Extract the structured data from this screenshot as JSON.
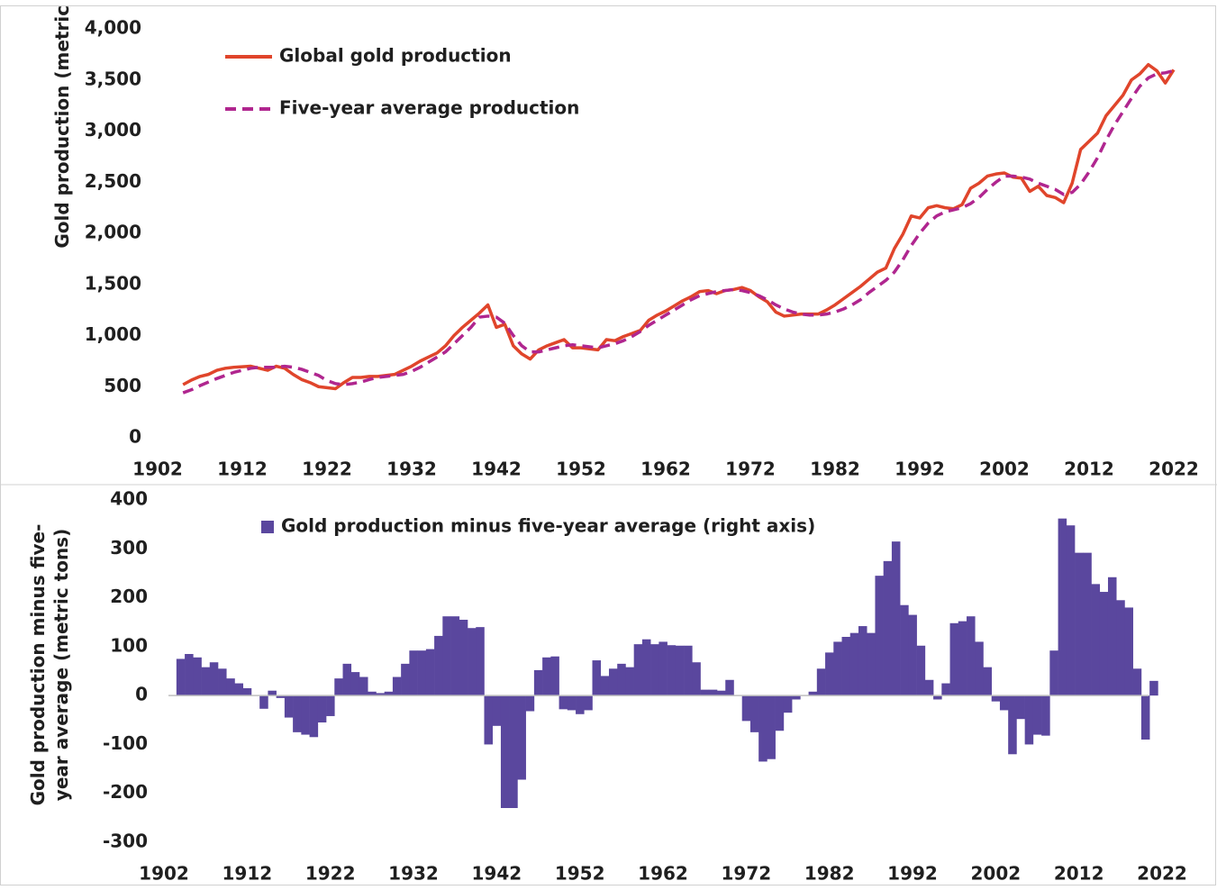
{
  "chart_data": [
    {
      "type": "line",
      "y_label": [
        "Gold production (metric tons)"
      ],
      "x": [
        1905,
        1906,
        1907,
        1908,
        1909,
        1910,
        1911,
        1912,
        1913,
        1914,
        1915,
        1916,
        1917,
        1918,
        1919,
        1920,
        1921,
        1922,
        1923,
        1924,
        1925,
        1926,
        1927,
        1928,
        1929,
        1930,
        1931,
        1932,
        1933,
        1934,
        1935,
        1936,
        1937,
        1938,
        1939,
        1940,
        1941,
        1942,
        1943,
        1944,
        1945,
        1946,
        1947,
        1948,
        1949,
        1950,
        1951,
        1952,
        1953,
        1954,
        1955,
        1956,
        1957,
        1958,
        1959,
        1960,
        1961,
        1962,
        1963,
        1964,
        1965,
        1966,
        1967,
        1968,
        1969,
        1970,
        1971,
        1972,
        1973,
        1974,
        1975,
        1976,
        1977,
        1978,
        1979,
        1980,
        1981,
        1982,
        1983,
        1984,
        1985,
        1986,
        1987,
        1988,
        1989,
        1990,
        1991,
        1992,
        1993,
        1994,
        1995,
        1996,
        1997,
        1998,
        1999,
        2000,
        2001,
        2002,
        2003,
        2004,
        2005,
        2006,
        2007,
        2008,
        2009,
        2010,
        2011,
        2012,
        2013,
        2014,
        2015,
        2016,
        2017,
        2018,
        2019,
        2020,
        2021,
        2022
      ],
      "series": [
        {
          "name": "Global gold production",
          "color": "#e0452b",
          "dash": false,
          "values": [
            520,
            565,
            600,
            620,
            660,
            680,
            690,
            695,
            700,
            680,
            660,
            700,
            680,
            620,
            570,
            540,
            500,
            490,
            480,
            540,
            590,
            590,
            600,
            600,
            610,
            620,
            660,
            700,
            750,
            790,
            830,
            900,
            1000,
            1080,
            1150,
            1220,
            1300,
            1080,
            1110,
            900,
            820,
            770,
            860,
            900,
            930,
            960,
            880,
            880,
            870,
            860,
            960,
            950,
            990,
            1020,
            1050,
            1150,
            1200,
            1240,
            1290,
            1340,
            1380,
            1430,
            1440,
            1410,
            1440,
            1450,
            1470,
            1440,
            1380,
            1330,
            1230,
            1190,
            1200,
            1210,
            1210,
            1210,
            1250,
            1300,
            1360,
            1420,
            1480,
            1550,
            1620,
            1660,
            1850,
            1990,
            2170,
            2150,
            2250,
            2270,
            2250,
            2240,
            2280,
            2440,
            2490,
            2560,
            2580,
            2590,
            2550,
            2540,
            2410,
            2460,
            2370,
            2350,
            2300,
            2490,
            2820,
            2900,
            2980,
            3150,
            3250,
            3350,
            3500,
            3560,
            3650,
            3590,
            3470,
            3600
          ]
        },
        {
          "name": "Five-year average production",
          "color": "#b0268f",
          "dash": true,
          "values": [
            440,
            470,
            510,
            545,
            580,
            610,
            640,
            660,
            680,
            690,
            690,
            690,
            700,
            690,
            670,
            640,
            610,
            560,
            530,
            520,
            530,
            545,
            570,
            590,
            600,
            610,
            620,
            650,
            690,
            740,
            790,
            840,
            920,
            1000,
            1080,
            1180,
            1190,
            1180,
            1120,
            1000,
            900,
            840,
            840,
            860,
            880,
            900,
            910,
            900,
            890,
            880,
            900,
            920,
            950,
            990,
            1040,
            1100,
            1150,
            1200,
            1250,
            1300,
            1350,
            1390,
            1410,
            1430,
            1440,
            1450,
            1440,
            1420,
            1390,
            1350,
            1300,
            1260,
            1230,
            1210,
            1200,
            1200,
            1210,
            1230,
            1260,
            1300,
            1350,
            1420,
            1480,
            1540,
            1620,
            1740,
            1880,
            2000,
            2100,
            2170,
            2210,
            2230,
            2250,
            2290,
            2350,
            2430,
            2500,
            2560,
            2560,
            2550,
            2530,
            2490,
            2460,
            2430,
            2380,
            2400,
            2480,
            2600,
            2740,
            2910,
            3060,
            3190,
            3320,
            3440,
            3520,
            3560,
            3570,
            3590
          ]
        }
      ],
      "xlim": [
        1902,
        2022
      ],
      "xticks": [
        1902,
        1912,
        1922,
        1932,
        1942,
        1952,
        1962,
        1972,
        1982,
        1992,
        2002,
        2012,
        2022
      ],
      "ylim": [
        0,
        4000
      ],
      "yticks": [
        0,
        500,
        {
          "value": 1000,
          "label": "1,000"
        },
        {
          "value": 1500,
          "label": "1,500"
        },
        {
          "value": 2000,
          "label": "2,000"
        },
        {
          "value": 2500,
          "label": "2,500"
        },
        {
          "value": 3000,
          "label": "3,000"
        },
        {
          "value": 3500,
          "label": "3,500"
        },
        {
          "value": 4000,
          "label": "4,000"
        }
      ]
    },
    {
      "type": "bar",
      "y_label": [
        "Gold production minus five-",
        "year average (metric tons)"
      ],
      "x": [
        1904,
        1905,
        1906,
        1907,
        1908,
        1909,
        1910,
        1911,
        1912,
        1913,
        1914,
        1915,
        1916,
        1917,
        1918,
        1919,
        1920,
        1921,
        1922,
        1923,
        1924,
        1925,
        1926,
        1927,
        1928,
        1929,
        1930,
        1931,
        1932,
        1933,
        1934,
        1935,
        1936,
        1937,
        1938,
        1939,
        1940,
        1941,
        1942,
        1943,
        1944,
        1945,
        1946,
        1947,
        1948,
        1949,
        1950,
        1951,
        1952,
        1953,
        1954,
        1955,
        1956,
        1957,
        1958,
        1959,
        1960,
        1961,
        1962,
        1963,
        1964,
        1965,
        1966,
        1967,
        1968,
        1969,
        1970,
        1971,
        1972,
        1973,
        1974,
        1975,
        1976,
        1977,
        1978,
        1979,
        1980,
        1981,
        1982,
        1983,
        1984,
        1985,
        1986,
        1987,
        1988,
        1989,
        1990,
        1991,
        1992,
        1993,
        1994,
        1995,
        1996,
        1997,
        1998,
        1999,
        2000,
        2001,
        2002,
        2003,
        2004,
        2005,
        2006,
        2007,
        2008,
        2009,
        2010,
        2011,
        2012,
        2013,
        2014,
        2015,
        2016,
        2017,
        2018,
        2019,
        2020,
        2021
      ],
      "series": [
        {
          "name": "Gold production minus five-year average (right axis)",
          "color": "#5a479e",
          "values": [
            75,
            85,
            78,
            58,
            68,
            55,
            35,
            25,
            15,
            0,
            -27,
            10,
            -5,
            -45,
            -75,
            -80,
            -85,
            -55,
            -42,
            35,
            65,
            48,
            38,
            8,
            5,
            8,
            38,
            65,
            92,
            92,
            95,
            122,
            162,
            162,
            155,
            138,
            140,
            -100,
            -62,
            -230,
            -230,
            -172,
            -32,
            52,
            78,
            80,
            -28,
            -30,
            -38,
            -30,
            72,
            40,
            55,
            65,
            58,
            105,
            115,
            105,
            110,
            103,
            102,
            102,
            68,
            12,
            12,
            10,
            32,
            0,
            -52,
            -75,
            -135,
            -130,
            -72,
            -35,
            -8,
            0,
            8,
            55,
            88,
            110,
            120,
            128,
            142,
            128,
            245,
            275,
            315,
            185,
            165,
            102,
            32,
            -8,
            25,
            148,
            152,
            162,
            110,
            58,
            -12,
            -30,
            -120,
            -48,
            -100,
            -80,
            -82,
            92,
            362,
            348,
            292,
            292,
            228,
            212,
            242,
            195,
            180,
            55,
            -90,
            30
          ]
        }
      ],
      "xlim": [
        1902,
        2022
      ],
      "xticks": [
        1902,
        1912,
        1922,
        1932,
        1942,
        1952,
        1962,
        1972,
        1982,
        1992,
        2002,
        2012,
        2022
      ],
      "ylim": [
        -300,
        400
      ],
      "yticks": [
        -300,
        -200,
        -100,
        0,
        100,
        200,
        300,
        400
      ]
    }
  ]
}
